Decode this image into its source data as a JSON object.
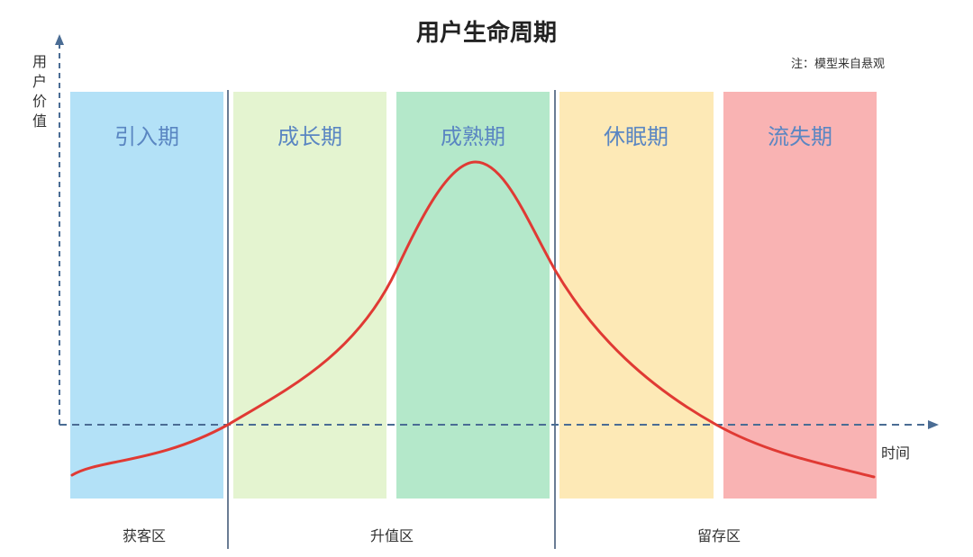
{
  "title": "用户生命周期",
  "note": "注：模型来自悬观",
  "y_axis": {
    "label": [
      "用",
      "户",
      "价",
      "值"
    ]
  },
  "x_axis": {
    "label": "时间"
  },
  "stages": [
    {
      "label": "引入期",
      "color": "#b3e1f7"
    },
    {
      "label": "成长期",
      "color": "#e4f4d0"
    },
    {
      "label": "成熟期",
      "color": "#b4e8ca"
    },
    {
      "label": "休眠期",
      "color": "#fde9b6"
    },
    {
      "label": "流失期",
      "color": "#f9b3b3"
    }
  ],
  "zones": [
    {
      "label": "获客区"
    },
    {
      "label": "升值区"
    },
    {
      "label": "留存区"
    }
  ],
  "colors": {
    "curve": "#e03a34",
    "axis": "#4a6c94",
    "divider": "#6a7c94",
    "stage_text": "#5a86c2"
  }
}
